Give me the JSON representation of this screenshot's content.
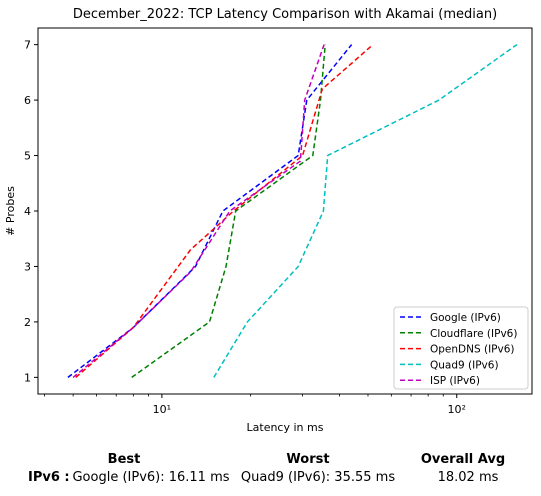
{
  "chart_data": {
    "type": "line",
    "title": "December_2022: TCP Latency Comparison with Akamai (median)",
    "xlabel": "Latency in ms",
    "ylabel": "# Probes",
    "xscale": "log",
    "xlim": [
      3.8,
      180
    ],
    "ylim": [
      0.7,
      7.3
    ],
    "xticks": [
      10,
      100
    ],
    "xtick_labels": [
      "10¹",
      "10²"
    ],
    "yticks": [
      1,
      2,
      3,
      4,
      5,
      6,
      7
    ],
    "legend_position": "lower-right",
    "grid": false,
    "series": [
      {
        "name": "Google (IPv6)",
        "color": "#0000ff",
        "points": [
          [
            4.8,
            1
          ],
          [
            8.0,
            1.9
          ],
          [
            13.0,
            3.0
          ],
          [
            16.1,
            4.0
          ],
          [
            29.0,
            5.0
          ],
          [
            31.0,
            6.0
          ],
          [
            44.0,
            7.0
          ]
        ]
      },
      {
        "name": "Cloudflare (IPv6)",
        "color": "#008000",
        "points": [
          [
            7.9,
            1
          ],
          [
            14.5,
            2.0
          ],
          [
            16.5,
            3.0
          ],
          [
            17.8,
            4.0
          ],
          [
            32.5,
            5.0
          ],
          [
            34.5,
            6.0
          ],
          [
            35.8,
            7.0
          ]
        ]
      },
      {
        "name": "OpenDNS (IPv6)",
        "color": "#ff0000",
        "points": [
          [
            5.1,
            1
          ],
          [
            8.0,
            1.9
          ],
          [
            12.5,
            3.3
          ],
          [
            17.5,
            4.0
          ],
          [
            30.0,
            5.0
          ],
          [
            35.0,
            6.2
          ],
          [
            52.0,
            7.0
          ]
        ]
      },
      {
        "name": "Quad9 (IPv6)",
        "color": "#00bfbf",
        "points": [
          [
            15.0,
            1
          ],
          [
            19.5,
            2.0
          ],
          [
            29.0,
            3.0
          ],
          [
            35.3,
            4.0
          ],
          [
            36.5,
            5.0
          ],
          [
            87.0,
            6.0
          ],
          [
            160.0,
            7.0
          ]
        ]
      },
      {
        "name": "ISP (IPv6)",
        "color": "#bf00bf",
        "points": [
          [
            5.0,
            1
          ],
          [
            8.0,
            1.9
          ],
          [
            12.5,
            2.9
          ],
          [
            17.0,
            4.0
          ],
          [
            29.5,
            4.9
          ],
          [
            30.5,
            6.0
          ],
          [
            35.5,
            7.0
          ]
        ]
      }
    ]
  },
  "summary": {
    "headers": {
      "best": "Best",
      "worst": "Worst",
      "overall": "Overall Avg"
    },
    "row_label": "IPv6 :",
    "best": "Google (IPv6): 16.11 ms",
    "worst": "Quad9 (IPv6): 35.55 ms",
    "overall": "18.02 ms"
  }
}
